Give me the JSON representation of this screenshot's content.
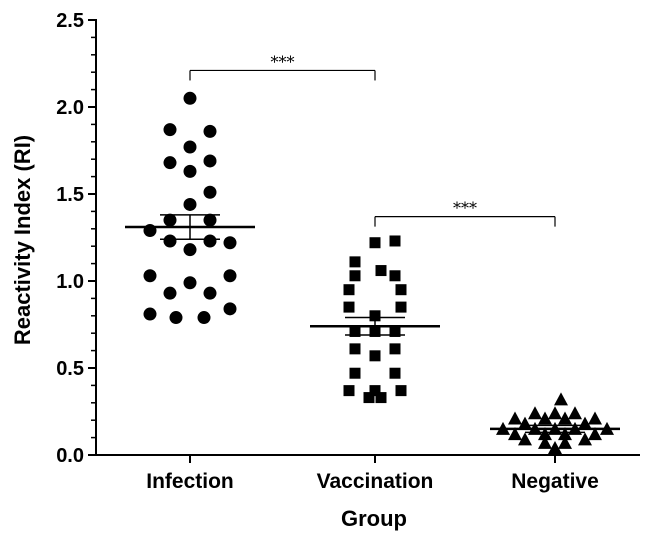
{
  "chart_data": {
    "type": "scatter",
    "xlabel": "Group",
    "ylabel": "Reactivity Index (RI)",
    "ylim": [
      0,
      2.5
    ],
    "yticks": [
      "0.0",
      "0.5",
      "1.0",
      "1.5",
      "2.0",
      "2.5"
    ],
    "grid": false,
    "categories": [
      "Infection",
      "Vaccination",
      "Negative"
    ],
    "series": [
      {
        "category": "Infection",
        "marker": "circle",
        "mean": 1.31,
        "sem": [
          1.24,
          1.38
        ],
        "points": [
          {
            "dx": 0,
            "y": 2.05
          },
          {
            "dx": -1,
            "y": 1.87
          },
          {
            "dx": 1,
            "y": 1.86
          },
          {
            "dx": 0,
            "y": 1.77
          },
          {
            "dx": -1,
            "y": 1.68
          },
          {
            "dx": 1,
            "y": 1.69
          },
          {
            "dx": 0,
            "y": 1.63
          },
          {
            "dx": 1,
            "y": 1.51
          },
          {
            "dx": 0,
            "y": 1.44
          },
          {
            "dx": -1,
            "y": 1.35
          },
          {
            "dx": 1,
            "y": 1.35
          },
          {
            "dx": -2,
            "y": 1.29
          },
          {
            "dx": -1,
            "y": 1.23
          },
          {
            "dx": 1,
            "y": 1.23
          },
          {
            "dx": 2,
            "y": 1.22
          },
          {
            "dx": 0,
            "y": 1.18
          },
          {
            "dx": -2,
            "y": 1.03
          },
          {
            "dx": 2,
            "y": 1.03
          },
          {
            "dx": 0,
            "y": 0.99
          },
          {
            "dx": -1,
            "y": 0.93
          },
          {
            "dx": 1,
            "y": 0.93
          },
          {
            "dx": 2,
            "y": 0.84
          },
          {
            "dx": -2,
            "y": 0.81
          },
          {
            "dx": -0.7,
            "y": 0.79
          },
          {
            "dx": 0.7,
            "y": 0.79
          }
        ]
      },
      {
        "category": "Vaccination",
        "marker": "square",
        "mean": 0.74,
        "sem": [
          0.69,
          0.79
        ],
        "points": [
          {
            "dx": 0,
            "y": 1.22
          },
          {
            "dx": 1,
            "y": 1.23
          },
          {
            "dx": -1,
            "y": 1.11
          },
          {
            "dx": 0.3,
            "y": 1.06
          },
          {
            "dx": -1,
            "y": 1.03
          },
          {
            "dx": 1,
            "y": 1.03
          },
          {
            "dx": -1.3,
            "y": 0.95
          },
          {
            "dx": 1.3,
            "y": 0.95
          },
          {
            "dx": -1.3,
            "y": 0.85
          },
          {
            "dx": 1.3,
            "y": 0.85
          },
          {
            "dx": 0,
            "y": 0.8
          },
          {
            "dx": -1,
            "y": 0.71
          },
          {
            "dx": 0,
            "y": 0.71
          },
          {
            "dx": 1,
            "y": 0.71
          },
          {
            "dx": -1,
            "y": 0.61
          },
          {
            "dx": 1,
            "y": 0.61
          },
          {
            "dx": 0,
            "y": 0.57
          },
          {
            "dx": -1,
            "y": 0.47
          },
          {
            "dx": 1,
            "y": 0.47
          },
          {
            "dx": -1.3,
            "y": 0.37
          },
          {
            "dx": 0,
            "y": 0.37
          },
          {
            "dx": 1.3,
            "y": 0.37
          },
          {
            "dx": -0.3,
            "y": 0.33
          },
          {
            "dx": 0.3,
            "y": 0.33
          }
        ]
      },
      {
        "category": "Negative",
        "marker": "triangle",
        "mean": 0.15,
        "sem": [
          0.13,
          0.17
        ],
        "points": [
          {
            "dx": 0.3,
            "y": 0.32
          },
          {
            "dx": -1,
            "y": 0.24
          },
          {
            "dx": 0,
            "y": 0.24
          },
          {
            "dx": 1,
            "y": 0.24
          },
          {
            "dx": -2,
            "y": 0.21
          },
          {
            "dx": -0.5,
            "y": 0.21
          },
          {
            "dx": 0.5,
            "y": 0.21
          },
          {
            "dx": 2,
            "y": 0.21
          },
          {
            "dx": -1.5,
            "y": 0.18
          },
          {
            "dx": 1.5,
            "y": 0.18
          },
          {
            "dx": -2.6,
            "y": 0.15
          },
          {
            "dx": -1,
            "y": 0.15
          },
          {
            "dx": 0,
            "y": 0.15
          },
          {
            "dx": 1,
            "y": 0.15
          },
          {
            "dx": 2.6,
            "y": 0.15
          },
          {
            "dx": -2,
            "y": 0.12
          },
          {
            "dx": -0.5,
            "y": 0.12
          },
          {
            "dx": 0.5,
            "y": 0.12
          },
          {
            "dx": 2,
            "y": 0.12
          },
          {
            "dx": -1.5,
            "y": 0.09
          },
          {
            "dx": 1.5,
            "y": 0.09
          },
          {
            "dx": -0.5,
            "y": 0.07
          },
          {
            "dx": 0.5,
            "y": 0.07
          },
          {
            "dx": 0,
            "y": 0.04
          }
        ]
      }
    ],
    "annotations": [
      {
        "from": "Infection",
        "to": "Vaccination",
        "label": "***",
        "y": 2.21
      },
      {
        "from": "Vaccination",
        "to": "Negative",
        "label": "***",
        "y": 1.37
      }
    ]
  }
}
